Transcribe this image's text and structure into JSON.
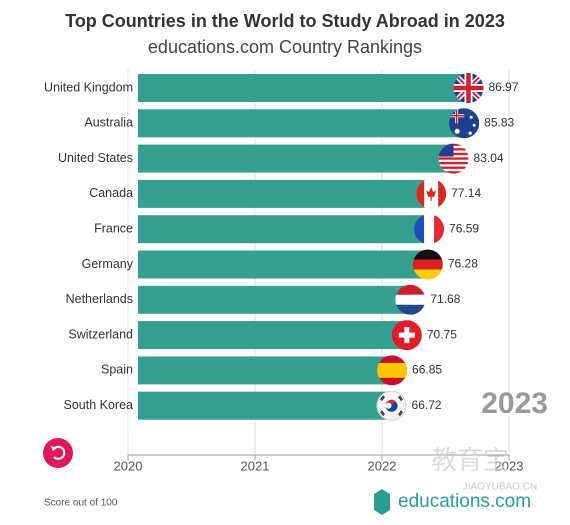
{
  "chart_data": {
    "type": "bar",
    "orientation": "horizontal",
    "title": "Top Countries in the World to Study Abroad in 2023",
    "subtitle": "educations.com Country Rankings",
    "categories": [
      "United Kingdom",
      "Australia",
      "United States",
      "Canada",
      "France",
      "Germany",
      "Netherlands",
      "Switzerland",
      "Spain",
      "South Korea"
    ],
    "values": [
      86.97,
      85.83,
      83.04,
      77.14,
      76.59,
      76.28,
      71.68,
      70.75,
      66.85,
      66.72
    ],
    "color": "#35a08f",
    "xlim": [
      0,
      100
    ],
    "footnote": "Score out of 100"
  },
  "timeline": {
    "ticks": [
      2020,
      2021,
      2022,
      2023
    ],
    "current": 2023
  },
  "logo": "educations.com",
  "watermark": {
    "text": "教育宝",
    "url": "JIAOYUBAO.CN"
  }
}
